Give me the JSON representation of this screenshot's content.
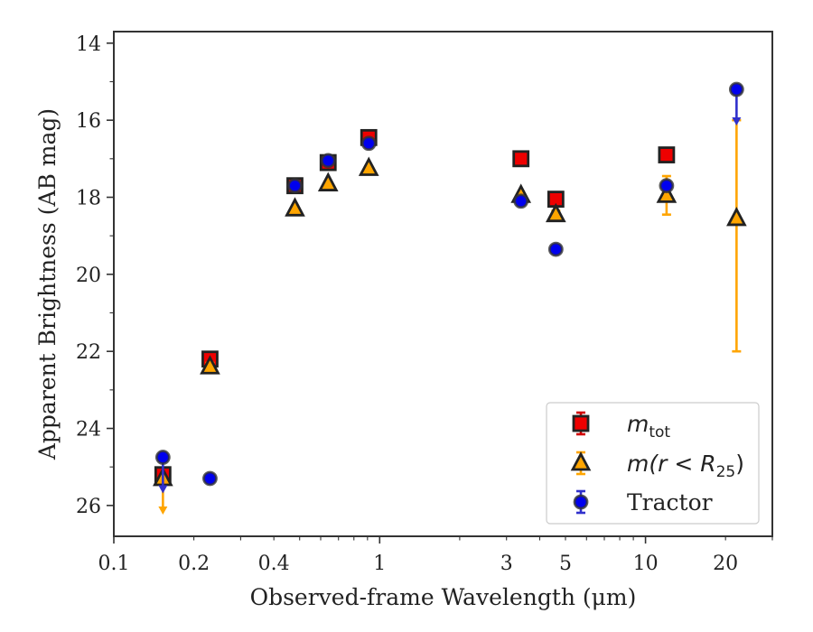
{
  "chart_data": {
    "type": "scatter",
    "xlabel": "Observed-frame Wavelength (μm)",
    "ylabel": "Apparent Brightness (AB mag)",
    "xscale": "log",
    "xlim": [
      0.1,
      30
    ],
    "ylim": [
      26.8,
      13.7
    ],
    "y_inverted": true,
    "x_ticks": [
      0.1,
      0.2,
      0.4,
      1,
      3,
      5,
      10,
      20
    ],
    "x_tick_labels": [
      "0.1",
      "0.2",
      "0.4",
      "1",
      "3",
      "5",
      "10",
      "20"
    ],
    "y_ticks": [
      14,
      16,
      18,
      20,
      22,
      24,
      26
    ],
    "y_tick_labels": [
      "14",
      "16",
      "18",
      "20",
      "22",
      "24",
      "26"
    ],
    "grid": false,
    "legend_position": "lower-right",
    "series": [
      {
        "name": "m_tot",
        "legend_main": "m",
        "legend_sub": "tot",
        "marker": "square",
        "color": "#ee0000",
        "error_color": "#d00000",
        "edge_color": "#222222",
        "points": [
          {
            "x": 0.153,
            "y": 25.2,
            "yerr": 0.1
          },
          {
            "x": 0.23,
            "y": 22.2,
            "yerr": 0.1
          },
          {
            "x": 0.48,
            "y": 17.7,
            "yerr": 0.05
          },
          {
            "x": 0.64,
            "y": 17.1,
            "yerr": 0.05
          },
          {
            "x": 0.91,
            "y": 16.45,
            "yerr": 0.05
          },
          {
            "x": 3.4,
            "y": 17.0,
            "yerr": 0.05
          },
          {
            "x": 4.6,
            "y": 18.05,
            "yerr": 0.1
          },
          {
            "x": 12.0,
            "y": 16.9,
            "yerr": 0.1
          }
        ]
      },
      {
        "name": "m(r<R25)",
        "legend_main": "m(r < R",
        "legend_sub": "25",
        "legend_close": ")",
        "marker": "triangle",
        "color": "#ffa500",
        "error_color": "#ffa500",
        "edge_color": "#222222",
        "points": [
          {
            "x": 0.153,
            "y": 25.3,
            "upper_limit": true
          },
          {
            "x": 0.23,
            "y": 22.4,
            "yerr": 0.1
          },
          {
            "x": 0.48,
            "y": 18.3,
            "yerr": 0.05
          },
          {
            "x": 0.64,
            "y": 17.65,
            "yerr": 0.05
          },
          {
            "x": 0.91,
            "y": 17.25,
            "yerr": 0.05
          },
          {
            "x": 3.4,
            "y": 17.95,
            "yerr": 0.05
          },
          {
            "x": 4.6,
            "y": 18.45,
            "yerr": 0.1
          },
          {
            "x": 12.0,
            "y": 17.95,
            "yerr": 0.5
          },
          {
            "x": 22.0,
            "y": 18.55,
            "err_low": 2.55,
            "err_high": 3.45
          }
        ]
      },
      {
        "name": "Tractor",
        "legend_main": "Tractor",
        "marker": "circle",
        "color": "#0000ee",
        "error_color": "#3030cc",
        "edge_color": "#333333",
        "points": [
          {
            "x": 0.153,
            "y": 24.75,
            "upper_limit": true
          },
          {
            "x": 0.23,
            "y": 25.3,
            "yerr": 0.05
          },
          {
            "x": 0.48,
            "y": 17.7,
            "yerr": 0.05
          },
          {
            "x": 0.64,
            "y": 17.05,
            "yerr": 0.05
          },
          {
            "x": 0.91,
            "y": 16.6,
            "yerr": 0.05
          },
          {
            "x": 3.4,
            "y": 18.1,
            "yerr": 0.05
          },
          {
            "x": 4.6,
            "y": 19.35,
            "yerr": 0.05
          },
          {
            "x": 12.0,
            "y": 17.7,
            "yerr": 0.1
          },
          {
            "x": 22.0,
            "y": 15.2,
            "upper_limit": true
          }
        ]
      }
    ]
  }
}
